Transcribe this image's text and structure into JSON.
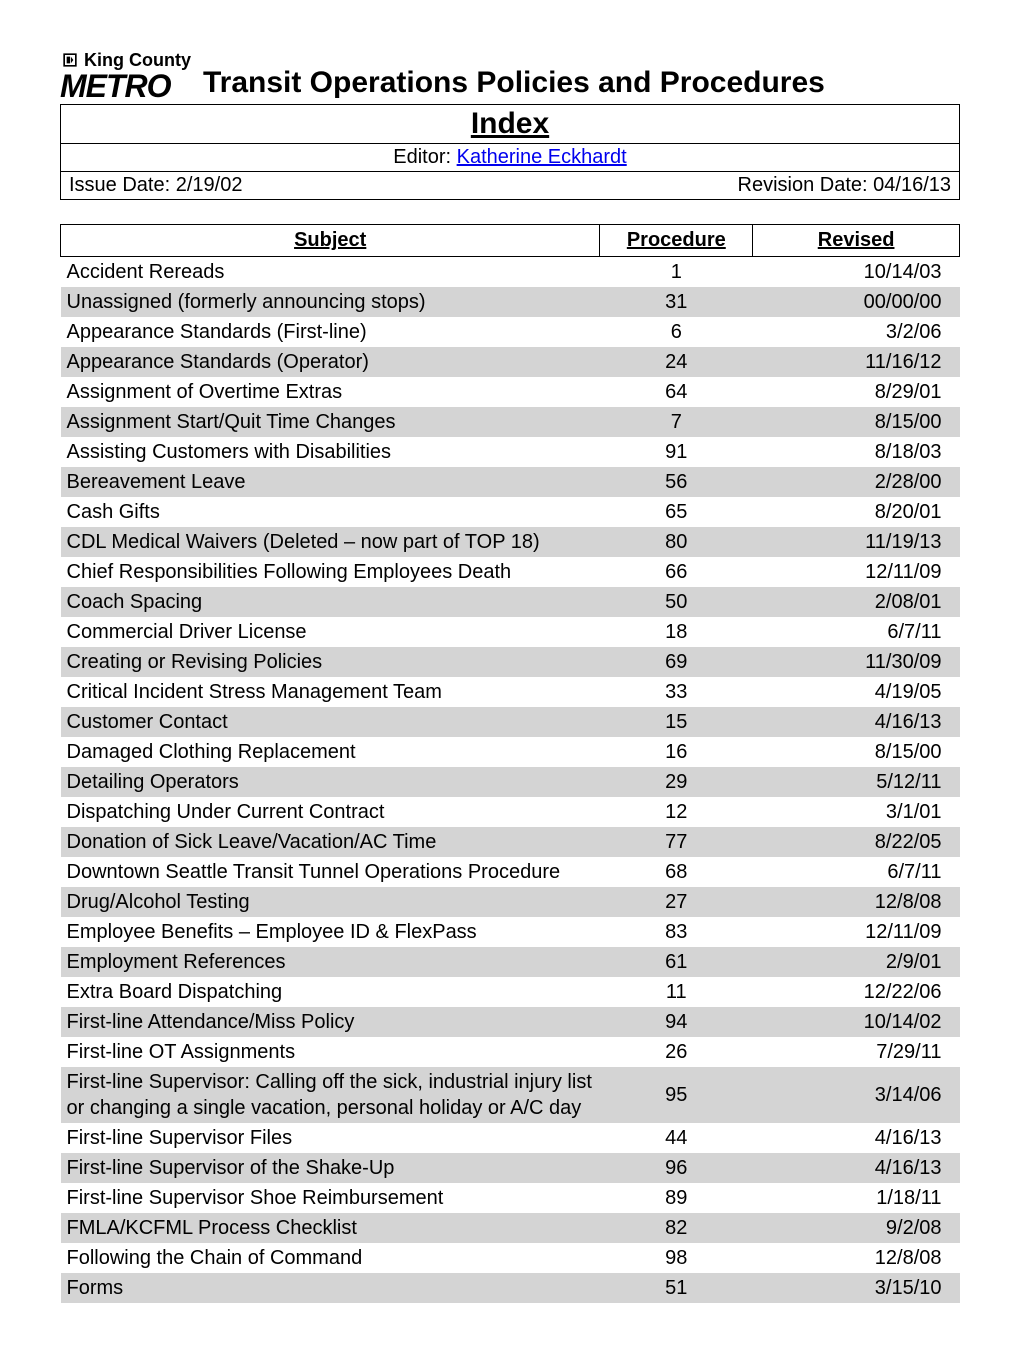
{
  "colors": {
    "shaded_row": "#d4d4d4",
    "link": "#0000ee",
    "text": "#000000",
    "bg": "#ffffff"
  },
  "header": {
    "org_line1": "King County",
    "org_line2": "METRO",
    "title_line1": "Transit Operations Policies and Procedures",
    "title_line2": "Index",
    "editor_label": "Editor: ",
    "editor_name": "Katherine Eckhardt",
    "issue_date_label": "Issue Date: ",
    "issue_date": "2/19/02",
    "revision_date_label": "Revision Date: ",
    "revision_date": "04/16/13"
  },
  "table": {
    "columns": [
      "Subject",
      "Procedure",
      "Revised"
    ],
    "rows": [
      {
        "subject": "Accident Rereads",
        "procedure": "1",
        "revised": "10/14/03"
      },
      {
        "subject": "Unassigned (formerly announcing stops)",
        "procedure": "31",
        "revised": "00/00/00"
      },
      {
        "subject": "Appearance Standards (First-line)",
        "procedure": "6",
        "revised": "3/2/06"
      },
      {
        "subject": "Appearance Standards (Operator)",
        "procedure": "24",
        "revised": "11/16/12"
      },
      {
        "subject": "Assignment of Overtime Extras",
        "procedure": "64",
        "revised": "8/29/01"
      },
      {
        "subject": "Assignment Start/Quit Time Changes",
        "procedure": "7",
        "revised": "8/15/00"
      },
      {
        "subject": "Assisting Customers with Disabilities",
        "procedure": "91",
        "revised": "8/18/03"
      },
      {
        "subject": "Bereavement Leave",
        "procedure": "56",
        "revised": "2/28/00"
      },
      {
        "subject": "Cash Gifts",
        "procedure": "65",
        "revised": "8/20/01"
      },
      {
        "subject": "CDL Medical Waivers (Deleted – now part of TOP 18)",
        "procedure": "80",
        "revised": "11/19/13"
      },
      {
        "subject": "Chief Responsibilities Following Employees Death",
        "procedure": "66",
        "revised": "12/11/09"
      },
      {
        "subject": "Coach Spacing",
        "procedure": "50",
        "revised": "2/08/01"
      },
      {
        "subject": "Commercial Driver License",
        "procedure": "18",
        "revised": "6/7/11"
      },
      {
        "subject": "Creating or Revising Policies",
        "procedure": "69",
        "revised": "11/30/09"
      },
      {
        "subject": "Critical Incident Stress Management Team",
        "procedure": "33",
        "revised": "4/19/05"
      },
      {
        "subject": "Customer Contact",
        "procedure": "15",
        "revised": "4/16/13"
      },
      {
        "subject": "Damaged Clothing Replacement",
        "procedure": "16",
        "revised": "8/15/00"
      },
      {
        "subject": "Detailing Operators",
        "procedure": "29",
        "revised": "5/12/11"
      },
      {
        "subject": "Dispatching Under Current Contract",
        "procedure": "12",
        "revised": "3/1/01"
      },
      {
        "subject": "Donation of Sick Leave/Vacation/AC Time",
        "procedure": "77",
        "revised": "8/22/05"
      },
      {
        "subject": "Downtown Seattle Transit Tunnel Operations Procedure",
        "procedure": "68",
        "revised": "6/7/11"
      },
      {
        "subject": "Drug/Alcohol Testing",
        "procedure": "27",
        "revised": "12/8/08"
      },
      {
        "subject": "Employee Benefits – Employee ID & FlexPass",
        "procedure": "83",
        "revised": "12/11/09"
      },
      {
        "subject": "Employment References",
        "procedure": "61",
        "revised": "2/9/01"
      },
      {
        "subject": "Extra Board Dispatching",
        "procedure": "11",
        "revised": "12/22/06"
      },
      {
        "subject": "First-line Attendance/Miss Policy",
        "procedure": "94",
        "revised": "10/14/02"
      },
      {
        "subject": "First-line OT Assignments",
        "procedure": "26",
        "revised": "7/29/11"
      },
      {
        "subject": "First-line Supervisor: Calling off the sick, industrial injury list or changing a single vacation, personal holiday or A/C day",
        "procedure": "95",
        "revised": "3/14/06"
      },
      {
        "subject": "First-line Supervisor Files",
        "procedure": "44",
        "revised": "4/16/13"
      },
      {
        "subject": "First-line Supervisor of the Shake-Up",
        "procedure": "96",
        "revised": "4/16/13"
      },
      {
        "subject": "First-line Supervisor Shoe Reimbursement",
        "procedure": "89",
        "revised": "1/18/11"
      },
      {
        "subject": "FMLA/KCFML Process Checklist",
        "procedure": "82",
        "revised": "9/2/08"
      },
      {
        "subject": "Following the Chain of Command",
        "procedure": "98",
        "revised": "12/8/08"
      },
      {
        "subject": "Forms",
        "procedure": "51",
        "revised": "3/15/10"
      }
    ]
  }
}
